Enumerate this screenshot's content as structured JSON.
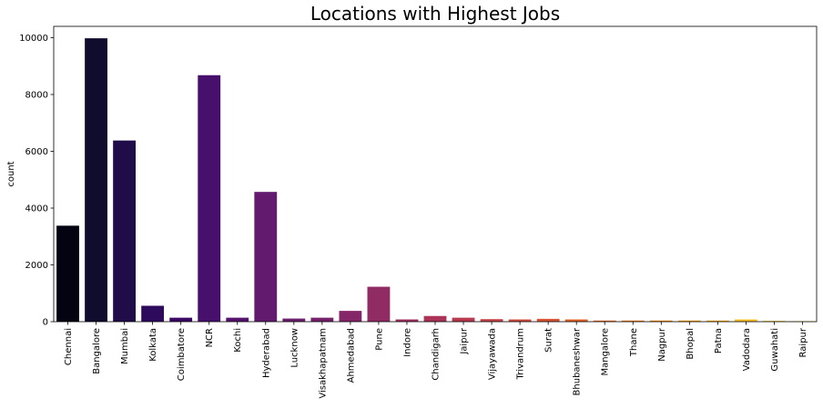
{
  "chart_data": {
    "type": "bar",
    "title": "Locations with Highest Jobs",
    "xlabel": "",
    "ylabel": "count",
    "ylim": [
      0,
      10400
    ],
    "yticks": [
      0,
      2000,
      4000,
      6000,
      8000,
      10000
    ],
    "grid": false,
    "legend": "none",
    "categories": [
      "Chennai",
      "Bangalore",
      "Mumbai",
      "Kolkata",
      "Coimbatore",
      "NCR",
      "Kochi",
      "Hyderabad",
      "Lucknow",
      "Visakhapatnam",
      "Ahmedabad",
      "Pune",
      "Indore",
      "Chandigarh",
      "Jaipur",
      "Vijayawada",
      "Trivandrum",
      "Surat",
      "Bhubaneshwar",
      "Mangalore",
      "Thane",
      "Nagpur",
      "Bhopal",
      "Patna",
      "Vadodara",
      "Guwahati",
      "Raipur"
    ],
    "values": [
      3380,
      9980,
      6380,
      560,
      140,
      8680,
      140,
      4570,
      110,
      140,
      380,
      1230,
      80,
      200,
      140,
      90,
      80,
      100,
      80,
      40,
      40,
      40,
      40,
      40,
      80,
      30,
      20
    ],
    "colors": [
      "#040312",
      "#100c2e",
      "#1f0c48",
      "#2e0a5c",
      "#3b0964",
      "#47106c",
      "#55136e",
      "#611a6e",
      "#6c1f6d",
      "#76226b",
      "#842668",
      "#912b64",
      "#9e2f5e",
      "#ab3358",
      "#b83a4f",
      "#c44347",
      "#cf4c3e",
      "#d95535",
      "#e26029",
      "#ea6c20",
      "#f07b15",
      "#f48a0c",
      "#f79c07",
      "#f9ac12",
      "#f8be27",
      "#f4cf3e",
      "#eedf5b"
    ]
  }
}
